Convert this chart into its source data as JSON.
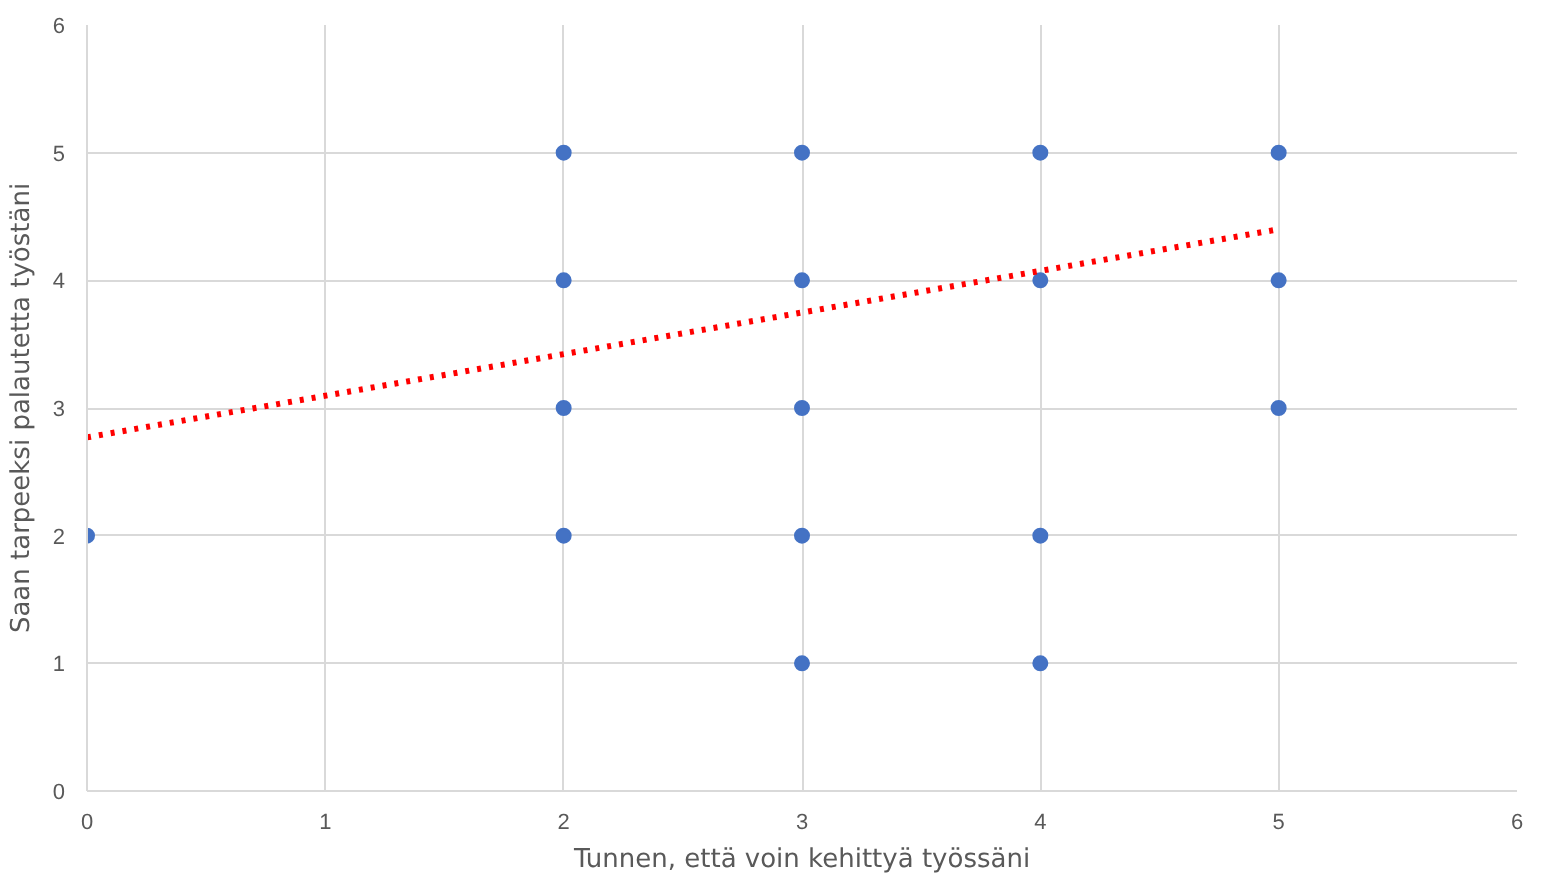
{
  "chart_data": {
    "type": "scatter",
    "xlabel": "Tunnen, että voin kehittyä työssäni",
    "ylabel": "Saan tarpeeksi palautetta työstäni",
    "xlim": [
      0,
      6
    ],
    "ylim": [
      0,
      6
    ],
    "xticks": [
      0,
      1,
      2,
      3,
      4,
      5,
      6
    ],
    "yticks": [
      0,
      1,
      2,
      3,
      4,
      5,
      6
    ],
    "grid": true,
    "series": [
      {
        "marker": "circle",
        "color": "#4472c4",
        "x": [
          0,
          2,
          2,
          2,
          2,
          3,
          3,
          3,
          3,
          3,
          4,
          4,
          4,
          4,
          5,
          5,
          5
        ],
        "values": [
          2,
          5,
          4,
          3,
          2,
          5,
          4,
          3,
          2,
          1,
          5,
          4,
          2,
          1,
          5,
          4,
          3
        ]
      },
      {
        "type": "line",
        "color": "#ff0000",
        "line_style": "dotted",
        "x": [
          0,
          5
        ],
        "values": [
          2.77,
          4.4
        ]
      }
    ]
  }
}
